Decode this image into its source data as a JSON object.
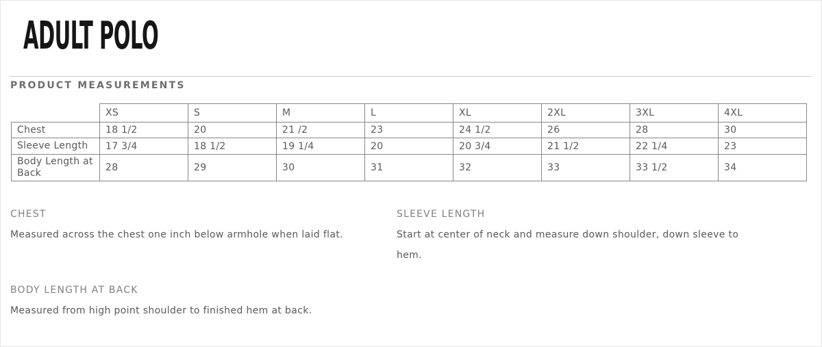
{
  "page": {
    "title": "ADULT POLO",
    "section_heading": "PRODUCT MEASUREMENTS"
  },
  "table": {
    "columns": [
      "XS",
      "S",
      "M",
      "L",
      "XL",
      "2XL",
      "3XL",
      "4XL"
    ],
    "rows": [
      {
        "label": "Chest",
        "values": [
          "18 1/2",
          "20",
          "21 /2",
          "23",
          "24 1/2",
          "26",
          "28",
          "30"
        ]
      },
      {
        "label": "Sleeve Length",
        "values": [
          "17 3/4",
          "18 1/2",
          "19 1/4",
          "20",
          "20 3/4",
          "21 1/2",
          "22 1/4",
          "23"
        ]
      },
      {
        "label": "Body Length at Back",
        "values": [
          "28",
          "29",
          "30",
          "31",
          "32",
          "33",
          "33 1/2",
          "34"
        ]
      }
    ]
  },
  "definitions": [
    {
      "heading": "CHEST",
      "text": "Measured across the chest one inch below armhole when laid flat."
    },
    {
      "heading": "SLEEVE LENGTH",
      "text": "Start at center of neck and measure down shoulder, down sleeve to hem."
    },
    {
      "heading": "BODY LENGTH AT BACK",
      "text": "Measured from high point shoulder to finished hem at back."
    }
  ],
  "colors": {
    "title": "#161616",
    "section_heading": "#6d6e70",
    "body_text": "#58595b",
    "definition_heading": "#7e8083",
    "table_border": "#85878a",
    "divider": "#cccccc"
  }
}
